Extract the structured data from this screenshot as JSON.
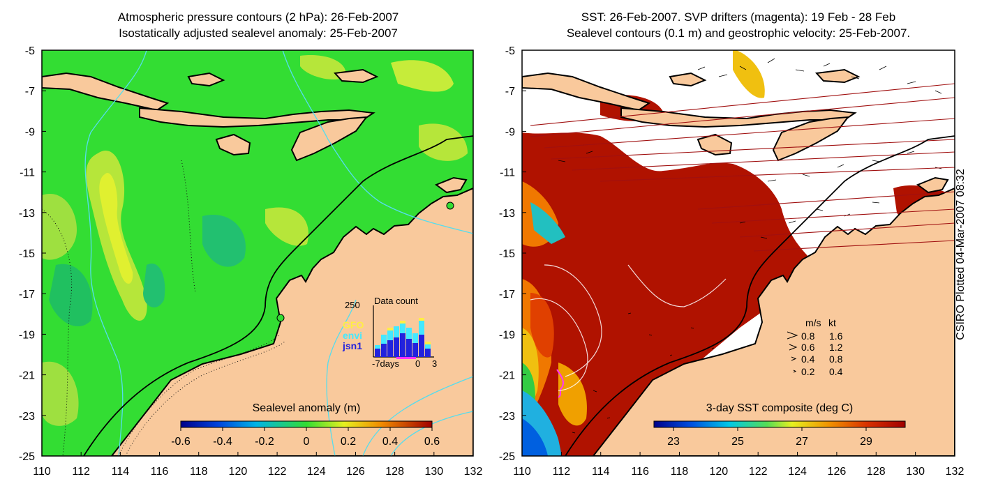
{
  "left_panel": {
    "title_line1": "Atmospheric pressure contours (2 hPa): 26-Feb-2007",
    "title_line2": "Isostatically adjusted sealevel anomaly: 25-Feb-2007",
    "colorbar_label": "Sealevel anomaly (m)",
    "colorbar_ticks": [
      "-0.6",
      "-0.4",
      "-0.2",
      "0",
      "0.2",
      "0.4",
      "0.6"
    ],
    "inset": {
      "title": "Data count",
      "y_tick": "250",
      "x_ticks": [
        "-7days",
        "0",
        "3"
      ],
      "legend": [
        {
          "label": "GFO",
          "color": "#ffee44"
        },
        {
          "label": "envi",
          "color": "#44e8ff"
        },
        {
          "label": "jsn1",
          "color": "#2222dd"
        }
      ]
    }
  },
  "right_panel": {
    "title_line1": "SST: 26-Feb-2007. SVP drifters (magenta): 19 Feb - 28 Feb",
    "title_line2": "Sealevel contours (0.1 m) and geostrophic velocity: 25-Feb-2007.",
    "colorbar_label": "3-day SST composite (deg C)",
    "colorbar_ticks": [
      "23",
      "25",
      "27",
      "29"
    ],
    "velocity_legend": {
      "header_ms": "m/s",
      "header_kt": "kt",
      "rows": [
        {
          "ms": "0.8",
          "kt": "1.6"
        },
        {
          "ms": "0.6",
          "kt": "1.2"
        },
        {
          "ms": "0.4",
          "kt": "0.8"
        },
        {
          "ms": "0.2",
          "kt": "0.4"
        }
      ]
    }
  },
  "axes": {
    "x_ticks": [
      "110",
      "112",
      "114",
      "116",
      "118",
      "120",
      "122",
      "124",
      "126",
      "128",
      "130",
      "132"
    ],
    "y_ticks": [
      "-5",
      "-7",
      "-9",
      "-11",
      "-13",
      "-15",
      "-17",
      "-19",
      "-21",
      "-23",
      "-25"
    ],
    "lon_range": [
      110,
      132
    ],
    "lat_range": [
      -25,
      -5
    ]
  },
  "stamp": "CSIRO Plotted 04-Mar-2007 08:32",
  "colors": {
    "land": "#f9c99c",
    "ocean_base": "#33dd33",
    "sst_warm": "#b01200",
    "coast": "#000000",
    "pressure_contour": "#55ddee",
    "drifter": "#ff33ff"
  }
}
